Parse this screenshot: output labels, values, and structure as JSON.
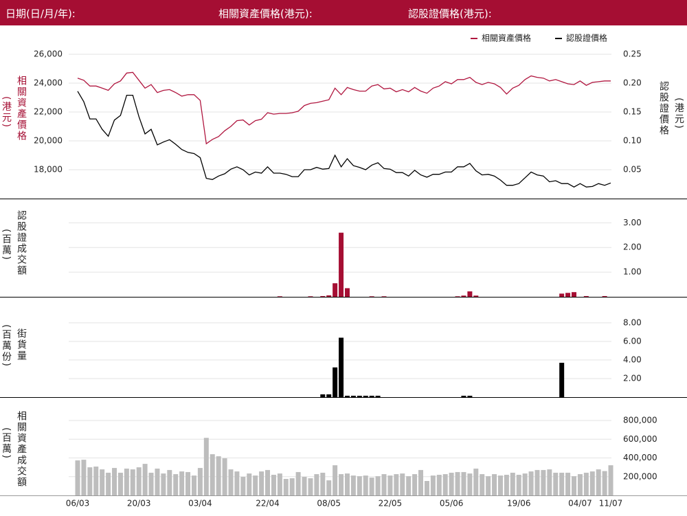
{
  "header": {
    "date": "日期(日/月/年):",
    "underlying": "相關資產價格(港元):",
    "warrant": "認股證價格(港元):"
  },
  "chart_data": [
    {
      "type": "line",
      "legend": "upper right",
      "ylabel": "相關資產價格",
      "ylabel_unit": "(港元)",
      "y2label": "認股證價格",
      "y2label_unit": "(港元)",
      "ylim": [
        16000,
        27000
      ],
      "yticks": [
        {
          "value": 18000,
          "label": "18,000"
        },
        {
          "value": 20000,
          "label": "20,000"
        },
        {
          "value": 22000,
          "label": "22,000"
        },
        {
          "value": 24000,
          "label": "24,000"
        },
        {
          "value": 26000,
          "label": "26,000"
        }
      ],
      "y2lim": [
        0,
        0.275
      ],
      "y2ticks": [
        {
          "value": 0.05,
          "label": "0.05"
        },
        {
          "value": 0.1,
          "label": "0.10"
        },
        {
          "value": 0.15,
          "label": "0.15"
        },
        {
          "value": 0.2,
          "label": "0.20"
        },
        {
          "value": 0.25,
          "label": "0.25"
        }
      ],
      "grid": true,
      "series": [
        {
          "name": "相關資產價格",
          "color": "#b0163f",
          "values": [
            24350,
            24200,
            23800,
            23800,
            23650,
            23500,
            23950,
            24150,
            24700,
            24750,
            24200,
            23650,
            23900,
            23350,
            23500,
            23550,
            23350,
            23100,
            23200,
            23200,
            22800,
            19800,
            20100,
            20300,
            20700,
            21000,
            21400,
            21450,
            21100,
            21400,
            21500,
            21950,
            21850,
            21900,
            21900,
            21950,
            22050,
            22450,
            22600,
            22650,
            22750,
            22850,
            23650,
            23200,
            23700,
            23550,
            23450,
            23450,
            23800,
            23900,
            23600,
            23650,
            23400,
            23550,
            23400,
            23700,
            23450,
            23300,
            23650,
            23800,
            24100,
            23950,
            24250,
            24250,
            24400,
            24050,
            23900,
            24050,
            23950,
            23700,
            23250,
            23650,
            23850,
            24250,
            24500,
            24400,
            24350,
            24150,
            24250,
            24100,
            23950,
            23900,
            24150,
            23850,
            24050,
            24100,
            24150,
            24150
          ]
        },
        {
          "name": "認股證價格",
          "color": "#000000",
          "axis": "y2",
          "values": [
            0.186,
            0.168,
            0.138,
            0.138,
            0.12,
            0.108,
            0.136,
            0.144,
            0.179,
            0.179,
            0.142,
            0.112,
            0.12,
            0.093,
            0.098,
            0.102,
            0.094,
            0.085,
            0.08,
            0.078,
            0.071,
            0.035,
            0.033,
            0.039,
            0.043,
            0.051,
            0.055,
            0.05,
            0.041,
            0.046,
            0.044,
            0.055,
            0.044,
            0.044,
            0.042,
            0.038,
            0.038,
            0.05,
            0.05,
            0.054,
            0.051,
            0.052,
            0.075,
            0.055,
            0.069,
            0.057,
            0.054,
            0.05,
            0.058,
            0.062,
            0.052,
            0.051,
            0.045,
            0.045,
            0.039,
            0.049,
            0.041,
            0.037,
            0.042,
            0.042,
            0.046,
            0.046,
            0.055,
            0.055,
            0.061,
            0.048,
            0.041,
            0.042,
            0.039,
            0.032,
            0.023,
            0.023,
            0.026,
            0.036,
            0.046,
            0.041,
            0.039,
            0.029,
            0.031,
            0.026,
            0.026,
            0.02,
            0.026,
            0.02,
            0.021,
            0.026,
            0.023,
            0.027
          ]
        }
      ]
    },
    {
      "type": "bar",
      "ylabel": "認股證成交額",
      "ylabel_unit": "(百萬)",
      "color": "#a50e33",
      "ylim": [
        0,
        3.9
      ],
      "yticks": [
        {
          "value": 1,
          "label": "1.00"
        },
        {
          "value": 2,
          "label": "2.00"
        },
        {
          "value": 3,
          "label": "3.00"
        }
      ],
      "grid": true,
      "values": [
        0,
        0,
        0,
        0,
        0,
        0,
        0,
        0,
        0,
        0,
        0,
        0,
        0,
        0,
        0,
        0,
        0,
        0,
        0,
        0,
        0,
        0,
        0,
        0,
        0,
        0,
        0,
        0,
        0,
        0,
        0,
        0,
        0,
        0.02,
        0,
        0,
        0,
        0,
        0.02,
        0,
        0.03,
        0.06,
        0.55,
        2.6,
        0.35,
        0,
        0,
        0,
        0.02,
        0,
        0.02,
        0,
        0,
        0,
        0,
        0,
        0,
        0,
        0,
        0,
        0,
        0,
        0.02,
        0.05,
        0.22,
        0.05,
        0,
        0,
        0,
        0,
        0,
        0,
        0,
        0,
        0,
        0,
        0,
        0,
        0,
        0.13,
        0.16,
        0.19,
        0,
        0.03,
        0,
        0,
        0.03,
        0
      ]
    },
    {
      "type": "bar",
      "ylabel": "街貨量",
      "ylabel_unit": "(百萬份)",
      "color": "#000000",
      "ylim": [
        0,
        10.8
      ],
      "yticks": [
        {
          "value": 2,
          "label": "2.00"
        },
        {
          "value": 4,
          "label": "4.00"
        },
        {
          "value": 6,
          "label": "6.00"
        },
        {
          "value": 8,
          "label": "8.00"
        }
      ],
      "grid": true,
      "values": [
        0,
        0,
        0,
        0,
        0,
        0,
        0,
        0,
        0,
        0,
        0,
        0,
        0,
        0,
        0,
        0,
        0,
        0,
        0,
        0,
        0,
        0,
        0,
        0,
        0,
        0,
        0,
        0,
        0,
        0,
        0,
        0,
        0,
        0,
        0,
        0,
        0,
        0,
        0,
        0,
        0.3,
        0.3,
        3.2,
        6.4,
        0.15,
        0.15,
        0.15,
        0.15,
        0.15,
        0.15,
        0,
        0,
        0,
        0,
        0,
        0,
        0,
        0,
        0,
        0,
        0,
        0,
        0,
        0.15,
        0.15,
        0,
        0,
        0,
        0,
        0,
        0,
        0,
        0,
        0,
        0,
        0,
        0,
        0,
        0,
        3.7,
        0,
        0,
        0,
        0,
        0,
        0,
        0,
        0
      ]
    },
    {
      "type": "bar",
      "ylabel": "相關資產成交額",
      "ylabel_unit": "(百萬)",
      "color": "#bdbdbd",
      "ylim": [
        0,
        1050000
      ],
      "yticks": [
        {
          "value": 200000,
          "label": "200,000"
        },
        {
          "value": 400000,
          "label": "400,000"
        },
        {
          "value": 600000,
          "label": "600,000"
        },
        {
          "value": 800000,
          "label": "800,000"
        }
      ],
      "grid": true,
      "categories": [
        "06/03",
        null,
        null,
        null,
        null,
        null,
        null,
        null,
        null,
        null,
        "20/03",
        null,
        null,
        null,
        null,
        null,
        null,
        null,
        null,
        null,
        "03/04",
        null,
        null,
        null,
        null,
        null,
        null,
        null,
        null,
        null,
        null,
        "22/04",
        null,
        null,
        null,
        null,
        null,
        null,
        null,
        null,
        null,
        "08/05",
        null,
        null,
        null,
        null,
        null,
        null,
        null,
        null,
        null,
        "22/05",
        null,
        null,
        null,
        null,
        null,
        null,
        null,
        null,
        null,
        "05/06",
        null,
        null,
        null,
        null,
        null,
        null,
        null,
        null,
        null,
        null,
        "19/06",
        null,
        null,
        null,
        null,
        null,
        null,
        null,
        null,
        null,
        "04/07",
        null,
        null,
        null,
        null,
        "11/07"
      ],
      "values": [
        374000,
        381000,
        300000,
        308000,
        278000,
        242000,
        293000,
        242000,
        286000,
        278000,
        300000,
        337000,
        242000,
        286000,
        234000,
        271000,
        227000,
        256000,
        249000,
        212000,
        293000,
        615000,
        440000,
        418000,
        396000,
        278000,
        256000,
        198000,
        234000,
        212000,
        256000,
        271000,
        220000,
        234000,
        176000,
        183000,
        249000,
        198000,
        183000,
        227000,
        242000,
        161000,
        322000,
        227000,
        234000,
        212000,
        205000,
        212000,
        190000,
        205000,
        227000,
        212000,
        227000,
        234000,
        205000,
        227000,
        271000,
        154000,
        212000,
        220000,
        227000,
        242000,
        249000,
        249000,
        234000,
        286000,
        227000,
        205000,
        227000,
        212000,
        220000,
        242000,
        220000,
        234000,
        256000,
        271000,
        271000,
        278000,
        242000,
        242000,
        242000,
        205000,
        227000,
        242000,
        256000,
        278000,
        260000,
        322000
      ]
    }
  ]
}
